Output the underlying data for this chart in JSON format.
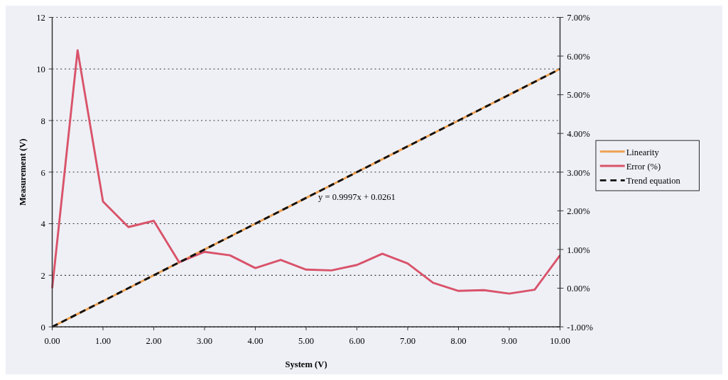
{
  "chart_data": {
    "type": "line",
    "xlabel": "System (V)",
    "ylabel": "Measurement (V)",
    "x": [
      0,
      0.5,
      1,
      1.5,
      2,
      2.5,
      3,
      3.5,
      4,
      4.5,
      5,
      5.5,
      6,
      6.5,
      7,
      7.5,
      8,
      8.5,
      9,
      9.5,
      10
    ],
    "series": [
      {
        "name": "Linearity",
        "color": "#f0a050",
        "values": [
          0,
          0.5,
          1,
          1.5,
          2,
          2.5,
          3,
          3.5,
          4,
          4.5,
          5,
          5.5,
          6,
          6.5,
          7,
          7.5,
          8,
          8.5,
          9,
          9.5,
          10
        ]
      },
      {
        "name": "Error (%)",
        "color": "#d9536a",
        "axis": "y2",
        "values": [
          0.0,
          6.15,
          2.24,
          1.58,
          1.74,
          0.67,
          0.94,
          0.85,
          0.52,
          0.73,
          0.48,
          0.46,
          0.6,
          0.89,
          0.64,
          0.14,
          -0.07,
          -0.05,
          -0.14,
          -0.04,
          0.85
        ]
      },
      {
        "name": "Trend equation",
        "color": "#111111",
        "line_style": "dashed",
        "x": [
          0,
          10
        ],
        "values": [
          0,
          10
        ]
      }
    ],
    "annotations": [
      "y = 0.9997x + 0.0261"
    ],
    "xlim": [
      0,
      10
    ],
    "xticks": [
      {
        "value": 0,
        "label": "0.00"
      },
      {
        "value": 1,
        "label": "1.00"
      },
      {
        "value": 2,
        "label": "2.00"
      },
      {
        "value": 3,
        "label": "3.00"
      },
      {
        "value": 4,
        "label": "4.00"
      },
      {
        "value": 5,
        "label": "5.00"
      },
      {
        "value": 6,
        "label": "6.00"
      },
      {
        "value": 7,
        "label": "7.00"
      },
      {
        "value": 8,
        "label": "8.00"
      },
      {
        "value": 9,
        "label": "9.00"
      },
      {
        "value": 10,
        "label": "10.00"
      }
    ],
    "ylim": [
      0,
      12
    ],
    "yticks": [
      0,
      2,
      4,
      6,
      8,
      10,
      12
    ],
    "y2lim": [
      -1,
      7
    ],
    "y2ticks": [
      {
        "value": -1,
        "label": "-1.00%"
      },
      {
        "value": 0,
        "label": "0.00%"
      },
      {
        "value": 1,
        "label": "1.00%"
      },
      {
        "value": 2,
        "label": "2.00%"
      },
      {
        "value": 3,
        "label": "3.00%"
      },
      {
        "value": 4,
        "label": "4.00%"
      },
      {
        "value": 5,
        "label": "5.00%"
      },
      {
        "value": 6,
        "label": "6.00%"
      },
      {
        "value": 7,
        "label": "7.00%"
      }
    ],
    "grid": "y",
    "legend": "right",
    "marker": "none"
  }
}
